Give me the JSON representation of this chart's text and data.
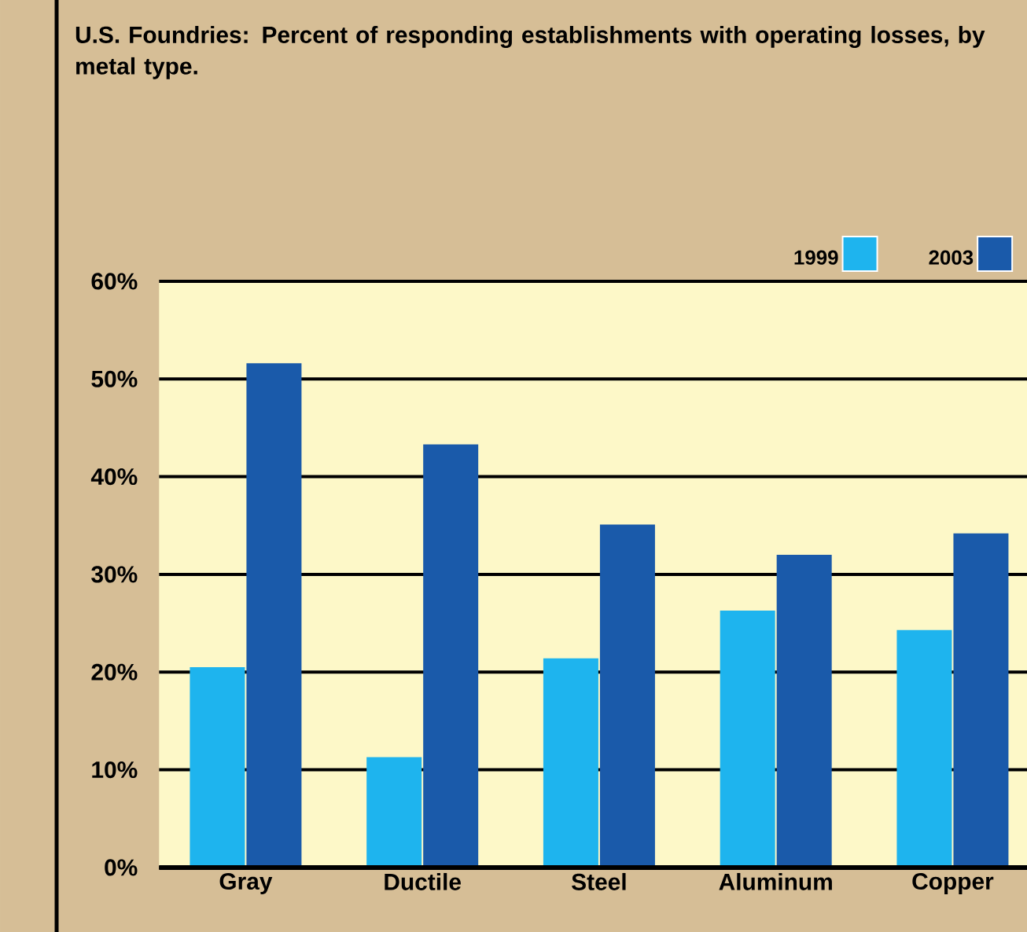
{
  "chart_data": {
    "type": "bar",
    "title": "U.S. Foundries: Percent of responding establishments with operating losses, by metal type.",
    "categories": [
      "Gray",
      "Ductile",
      "Steel",
      "Aluminum",
      "Copper"
    ],
    "series": [
      {
        "name": "1999",
        "color": "#1eb4ee",
        "values": [
          20.5,
          11.3,
          21.4,
          26.3,
          24.3
        ]
      },
      {
        "name": "2003",
        "color": "#1a5aaa",
        "values": [
          51.6,
          43.3,
          35.1,
          32.0,
          34.2
        ]
      }
    ],
    "ylim": [
      0,
      60
    ],
    "yticks": [
      {
        "value": 0,
        "label": "0%"
      },
      {
        "value": 10,
        "label": "10%"
      },
      {
        "value": 20,
        "label": "20%"
      },
      {
        "value": 30,
        "label": "30%"
      },
      {
        "value": 40,
        "label": "40%"
      },
      {
        "value": 50,
        "label": "50%"
      },
      {
        "value": 60,
        "label": "60%"
      }
    ],
    "grid": "y",
    "legend": "top right"
  }
}
